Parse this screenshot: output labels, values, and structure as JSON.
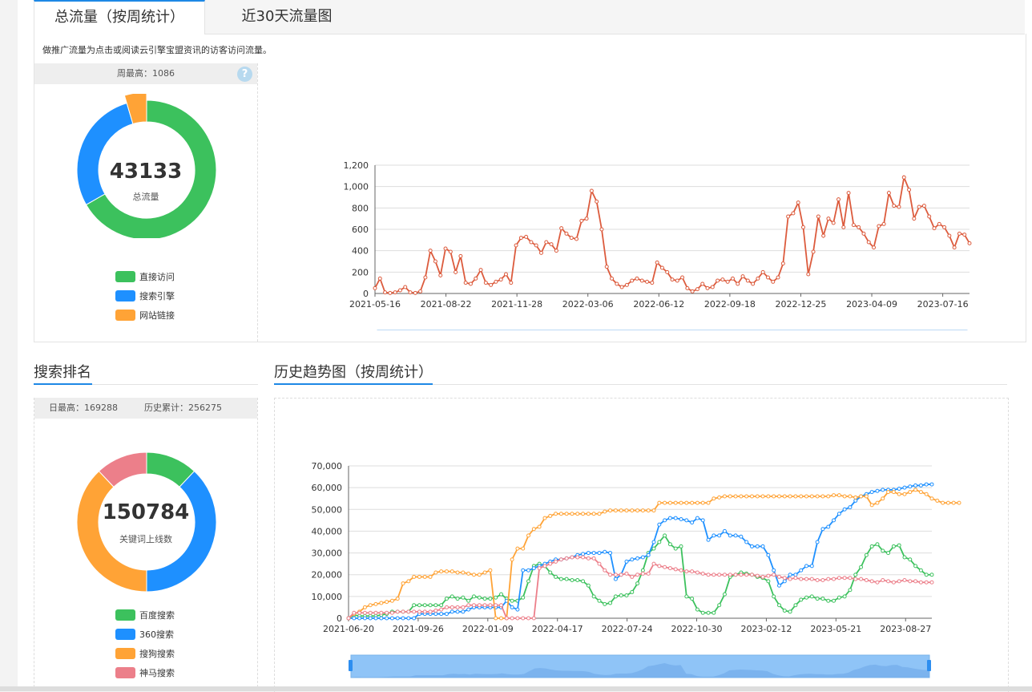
{
  "tabs": [
    {
      "label": "总流量（按周统计）"
    },
    {
      "label": "近30天流量图"
    }
  ],
  "traffic": {
    "description": "做推广流量为点击或阅读云引擎宝盟资讯的访客访问流量。",
    "weekly_max": "周最高：1086",
    "help": "?",
    "total": "43133",
    "total_label": "总流量",
    "legend": [
      {
        "label": "直接访问",
        "color": "#3cc15d"
      },
      {
        "label": "搜索引擎",
        "color": "#1e90ff"
      },
      {
        "label": "网站链接",
        "color": "#ffa336"
      }
    ],
    "donut": [
      {
        "name": "直接访问",
        "value": 0.667,
        "color": "#3cc15d"
      },
      {
        "name": "搜索引擎",
        "value": 0.287,
        "color": "#1e90ff"
      },
      {
        "name": "网站链接",
        "value": 0.046,
        "color": "#ffa336"
      }
    ]
  },
  "search_rank": {
    "title": "搜索排名",
    "daily_max": "日最高：169288",
    "history_total": "历史累计：256275",
    "total": "150784",
    "total_label": "关键词上线数",
    "legend": [
      {
        "label": "百度搜索",
        "color": "#3cc15d"
      },
      {
        "label": "360搜索",
        "color": "#1e90ff"
      },
      {
        "label": "搜狗搜索",
        "color": "#ffa336"
      },
      {
        "label": "神马搜索",
        "color": "#ec7f8a"
      }
    ],
    "donut": [
      {
        "name": "百度搜索",
        "value": 0.12,
        "color": "#3cc15d"
      },
      {
        "name": "360搜索",
        "value": 0.38,
        "color": "#1e90ff"
      },
      {
        "name": "搜狗搜索",
        "value": 0.38,
        "color": "#ffa336"
      },
      {
        "name": "神马搜索",
        "value": 0.12,
        "color": "#ec7f8a"
      }
    ]
  },
  "history": {
    "title": "历史趋势图（按周统计）"
  },
  "chart_data": [
    {
      "type": "line",
      "ylim": [
        0,
        1200
      ],
      "yticks": [
        "0",
        "200",
        "400",
        "600",
        "800",
        "1,000",
        "1,200"
      ],
      "xticks": [
        "2021-05-16",
        "2021-08-22",
        "2021-11-28",
        "2022-03-06",
        "2022-06-12",
        "2022-09-18",
        "2022-12-25",
        "2023-04-09",
        "2023-07-16"
      ],
      "color": "#dc5b3d",
      "series": [
        {
          "values": [
            50,
            140,
            10,
            5,
            10,
            30,
            60,
            10,
            5,
            20,
            150,
            400,
            300,
            170,
            420,
            390,
            200,
            350,
            100,
            90,
            140,
            220,
            100,
            80,
            110,
            130,
            180,
            100,
            450,
            520,
            530,
            480,
            450,
            380,
            480,
            460,
            400,
            610,
            560,
            520,
            510,
            680,
            700,
            960,
            860,
            600,
            250,
            140,
            90,
            60,
            80,
            120,
            140,
            120,
            110,
            100,
            290,
            240,
            200,
            130,
            120,
            150,
            50,
            20,
            40,
            90,
            50,
            60,
            120,
            130,
            110,
            140,
            90,
            160,
            120,
            90,
            140,
            200,
            150,
            110,
            150,
            280,
            720,
            750,
            850,
            620,
            180,
            390,
            720,
            540,
            700,
            660,
            880,
            620,
            940,
            640,
            620,
            560,
            480,
            430,
            630,
            650,
            940,
            820,
            810,
            1086,
            970,
            700,
            810,
            820,
            720,
            610,
            650,
            620,
            540,
            430,
            560,
            550,
            470
          ]
        }
      ]
    },
    {
      "type": "line",
      "ylim": [
        0,
        70000
      ],
      "yticks": [
        "0",
        "10,000",
        "20,000",
        "30,000",
        "40,000",
        "50,000",
        "60,000",
        "70,000"
      ],
      "xticks": [
        "2021-06-20",
        "2021-09-26",
        "2022-01-09",
        "2022-04-17",
        "2022-07-24",
        "2022-10-30",
        "2023-02-12",
        "2023-05-21",
        "2023-08-27"
      ],
      "series": [
        {
          "color": "#3cc15d",
          "values": [
            0,
            1500,
            1000,
            1000,
            1000,
            1000,
            1500,
            2000,
            3000,
            3000,
            3000,
            3000,
            6000,
            6000,
            6000,
            6000,
            6000,
            6000,
            9000,
            10000,
            9000,
            9500,
            8000,
            10000,
            9500,
            9000,
            9000,
            9500,
            11000,
            9000,
            8000,
            8000,
            9500,
            17000,
            24000,
            25000,
            24000,
            21000,
            19000,
            18000,
            18000,
            17500,
            17500,
            17000,
            15000,
            10000,
            8000,
            6500,
            7000,
            10000,
            10500,
            10500,
            12000,
            16000,
            22000,
            30000,
            32000,
            35000,
            38000,
            34000,
            32000,
            33000,
            10000,
            9000,
            4000,
            2500,
            2500,
            2500,
            6000,
            11000,
            19000,
            20000,
            21000,
            20500,
            20000,
            19000,
            18500,
            17000,
            10000,
            6000,
            3500,
            3000,
            6000,
            8500,
            9500,
            10000,
            9000,
            9000,
            8000,
            8000,
            9500,
            10000,
            13000,
            20000,
            23500,
            29000,
            33000,
            34000,
            31000,
            30000,
            33000,
            33500,
            28000,
            27000,
            24000,
            22000,
            20000,
            20000
          ]
        },
        {
          "color": "#1e90ff",
          "values": [
            0,
            0,
            0,
            0,
            0,
            0,
            0,
            0,
            0,
            0,
            0,
            0,
            0,
            2000,
            2000,
            2000,
            2000,
            2000,
            2000,
            3000,
            3000,
            3000,
            4000,
            5000,
            5000,
            5000,
            5000,
            5000,
            5000,
            8000,
            5000,
            4000,
            22000,
            22000,
            23000,
            24000,
            25000,
            26000,
            27000,
            27000,
            27500,
            28000,
            29000,
            29500,
            30000,
            30000,
            30000,
            30500,
            30000,
            18000,
            20000,
            26000,
            27000,
            27500,
            28000,
            29000,
            35000,
            43000,
            45000,
            46000,
            46000,
            45500,
            45000,
            44000,
            46000,
            45000,
            36000,
            38000,
            38000,
            40000,
            38000,
            38000,
            37500,
            35000,
            33000,
            33000,
            33000,
            29000,
            22000,
            15000,
            17000,
            20000,
            20000,
            22000,
            24000,
            24000,
            35000,
            41000,
            42000,
            45000,
            48000,
            50000,
            51000,
            54000,
            56000,
            57000,
            58000,
            58500,
            59000,
            59000,
            59000,
            59500,
            60000,
            60500,
            61000,
            61000,
            61500,
            61500
          ]
        },
        {
          "color": "#ffa336",
          "values": [
            0,
            2000,
            3000,
            5000,
            6000,
            6500,
            7000,
            7500,
            8000,
            9000,
            16000,
            17000,
            19000,
            19000,
            19000,
            19000,
            21000,
            21500,
            21500,
            21500,
            21000,
            21000,
            20500,
            20000,
            20000,
            21000,
            22000,
            0,
            0,
            0,
            27000,
            32000,
            32000,
            38000,
            41000,
            42000,
            46000,
            47000,
            48000,
            48000,
            48000,
            48000,
            48000,
            48000,
            48000,
            48000,
            48000,
            49000,
            49500,
            49500,
            49500,
            49500,
            49500,
            49500,
            49500,
            49500,
            49500,
            53000,
            53000,
            53000,
            53000,
            53000,
            53000,
            53000,
            53000,
            53000,
            53000,
            55000,
            55500,
            56000,
            56000,
            56000,
            56000,
            56000,
            56000,
            56000,
            56000,
            56000,
            56000,
            56000,
            56000,
            56000,
            56000,
            56000,
            56000,
            56000,
            56000,
            56000,
            56000,
            56500,
            56500,
            56000,
            56000,
            55500,
            56000,
            56000,
            52000,
            53000,
            55000,
            58000,
            58000,
            57000,
            57000,
            58000,
            59000,
            58000,
            57000,
            55000,
            54000,
            53000,
            53000,
            53000,
            53000
          ]
        },
        {
          "color": "#ec7f8a",
          "values": [
            0,
            2500,
            2500,
            2500,
            2500,
            2500,
            2500,
            2500,
            2500,
            3000,
            3000,
            3000,
            3000,
            3000,
            3000,
            3000,
            3500,
            4000,
            5000,
            5000,
            5000,
            5000,
            6000,
            6000,
            6000,
            6000,
            6000,
            6000,
            6000,
            0,
            0,
            0,
            0,
            0,
            0,
            23000,
            24000,
            25000,
            26000,
            27000,
            27500,
            28000,
            28000,
            28000,
            27500,
            27500,
            25000,
            22000,
            20000,
            20000,
            20000,
            20500,
            19000,
            20000,
            20500,
            20500,
            25000,
            24000,
            23500,
            23000,
            22500,
            22000,
            21500,
            21500,
            21000,
            20500,
            20000,
            20000,
            20000,
            20000,
            20000,
            20000,
            20000,
            20000,
            20000,
            19500,
            19000,
            19500,
            20000,
            19000,
            18500,
            18000,
            18500,
            18000,
            18000,
            18000,
            17500,
            17500,
            18000,
            18000,
            18500,
            18500,
            18500,
            18000,
            18000,
            17500,
            17000,
            16500,
            17500,
            17000,
            16500,
            17000,
            17500,
            17000,
            17000,
            16500,
            16500,
            16500
          ]
        }
      ]
    }
  ]
}
